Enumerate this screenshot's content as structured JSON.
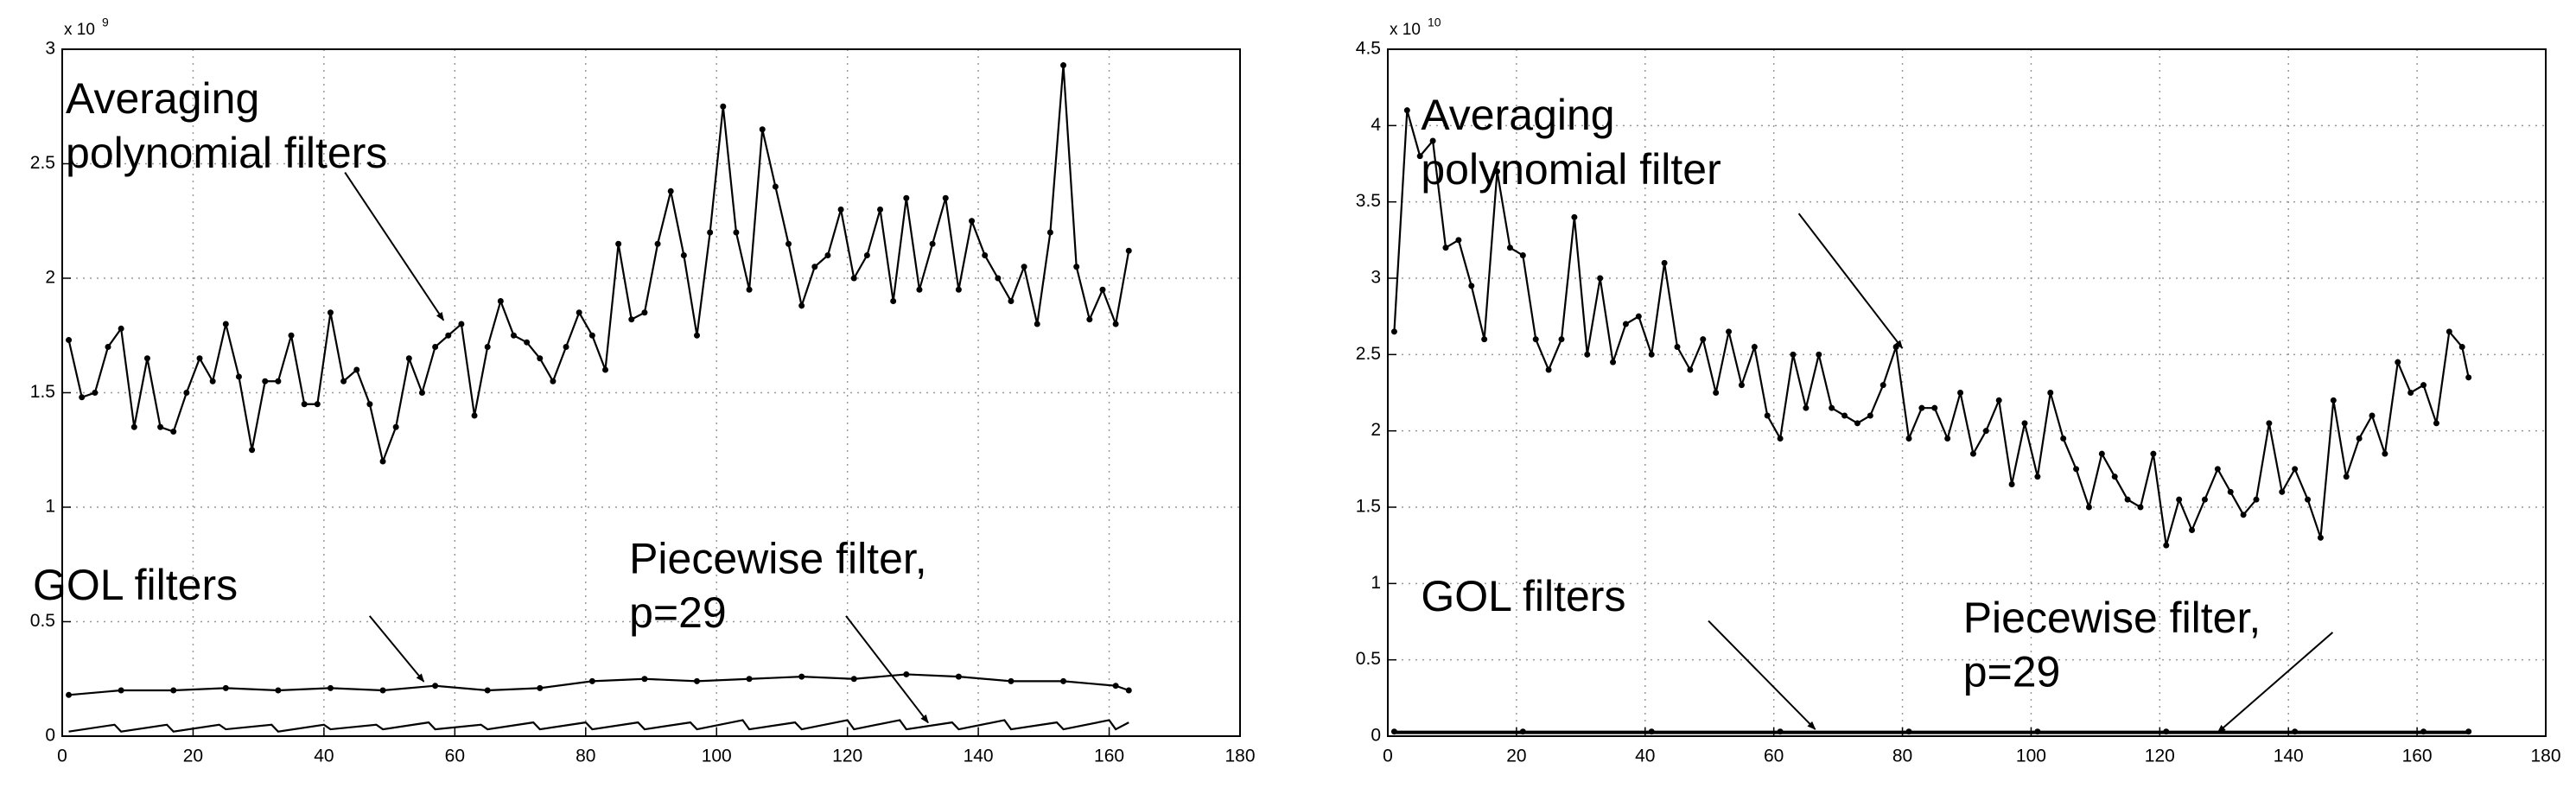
{
  "chart_data": [
    {
      "type": "line",
      "y_scale_label": {
        "base": "x 10",
        "exponent": "9"
      },
      "xlim": [
        0,
        180
      ],
      "xticks": [
        0,
        20,
        40,
        60,
        80,
        100,
        120,
        140,
        160,
        180
      ],
      "ylim": [
        0,
        3
      ],
      "yticks": [
        0,
        0.5,
        1,
        1.5,
        2,
        2.5,
        3
      ],
      "grid": true,
      "series": [
        {
          "color": "#000000",
          "markers": true,
          "x": [
            1,
            3,
            5,
            7,
            9,
            11,
            13,
            15,
            17,
            19,
            21,
            23,
            25,
            27,
            29,
            31,
            33,
            35,
            37,
            39,
            41,
            43,
            45,
            47,
            49,
            51,
            53,
            55,
            57,
            59,
            61,
            63,
            65,
            67,
            69,
            71,
            73,
            75,
            77,
            79,
            81,
            83,
            85,
            87,
            89,
            91,
            93,
            95,
            97,
            99,
            101,
            103,
            105,
            107,
            109,
            111,
            113,
            115,
            117,
            119,
            121,
            123,
            125,
            127,
            129,
            131,
            133,
            135,
            137,
            139,
            141,
            143,
            145,
            147,
            149,
            151,
            153,
            155,
            157,
            159,
            161,
            163
          ],
          "values": [
            1.73,
            1.48,
            1.5,
            1.7,
            1.78,
            1.35,
            1.65,
            1.35,
            1.33,
            1.5,
            1.65,
            1.55,
            1.8,
            1.57,
            1.25,
            1.55,
            1.55,
            1.75,
            1.45,
            1.45,
            1.85,
            1.55,
            1.6,
            1.45,
            1.2,
            1.35,
            1.65,
            1.5,
            1.7,
            1.75,
            1.8,
            1.4,
            1.7,
            1.9,
            1.75,
            1.72,
            1.65,
            1.55,
            1.7,
            1.85,
            1.75,
            1.6,
            2.15,
            1.82,
            1.85,
            2.15,
            2.38,
            2.1,
            1.75,
            2.2,
            2.75,
            2.2,
            1.95,
            2.65,
            2.4,
            2.15,
            1.88,
            2.05,
            2.1,
            2.3,
            2.0,
            2.1,
            2.3,
            1.9,
            2.35,
            1.95,
            2.15,
            2.35,
            1.95,
            2.25,
            2.1,
            2.0,
            1.9,
            2.05,
            1.8,
            2.2,
            2.93,
            2.05,
            1.82,
            1.95,
            1.8,
            2.12
          ]
        },
        {
          "color": "#000000",
          "markers": true,
          "x": [
            1,
            9,
            17,
            25,
            33,
            41,
            49,
            57,
            65,
            73,
            81,
            89,
            97,
            105,
            113,
            121,
            129,
            137,
            145,
            153,
            161,
            163
          ],
          "values": [
            0.18,
            0.2,
            0.2,
            0.21,
            0.2,
            0.21,
            0.2,
            0.22,
            0.2,
            0.21,
            0.24,
            0.25,
            0.24,
            0.25,
            0.26,
            0.25,
            0.27,
            0.26,
            0.24,
            0.24,
            0.22,
            0.2
          ]
        },
        {
          "color": "#000000",
          "markers": false,
          "x": [
            1,
            8,
            9,
            16,
            17,
            24,
            25,
            32,
            33,
            40,
            41,
            48,
            49,
            56,
            57,
            64,
            65,
            72,
            73,
            80,
            81,
            88,
            89,
            96,
            97,
            104,
            105,
            112,
            113,
            120,
            121,
            128,
            129,
            136,
            137,
            144,
            145,
            152,
            153,
            160,
            161,
            163
          ],
          "values": [
            0.02,
            0.05,
            0.02,
            0.05,
            0.02,
            0.05,
            0.03,
            0.05,
            0.02,
            0.05,
            0.03,
            0.05,
            0.03,
            0.06,
            0.03,
            0.05,
            0.03,
            0.06,
            0.03,
            0.06,
            0.03,
            0.06,
            0.03,
            0.06,
            0.03,
            0.07,
            0.03,
            0.06,
            0.03,
            0.07,
            0.03,
            0.07,
            0.03,
            0.06,
            0.03,
            0.07,
            0.03,
            0.06,
            0.03,
            0.07,
            0.03,
            0.06
          ]
        }
      ],
      "annotations": [
        {
          "lines": [
            "Averaging",
            "polynomial filters"
          ]
        },
        {
          "lines": [
            "GOL filters"
          ]
        },
        {
          "lines": [
            "Piecewise filter,",
            "p=29"
          ]
        }
      ]
    },
    {
      "type": "line",
      "y_scale_label": {
        "base": "x 10",
        "exponent": "10"
      },
      "xlim": [
        0,
        180
      ],
      "xticks": [
        0,
        20,
        40,
        60,
        80,
        100,
        120,
        140,
        160,
        180
      ],
      "ylim": [
        0,
        4.5
      ],
      "yticks": [
        0,
        0.5,
        1,
        1.5,
        2,
        2.5,
        3,
        3.5,
        4,
        4.5
      ],
      "grid": true,
      "series": [
        {
          "color": "#000000",
          "markers": true,
          "x": [
            1,
            3,
            5,
            7,
            9,
            11,
            13,
            15,
            17,
            19,
            21,
            23,
            25,
            27,
            29,
            31,
            33,
            35,
            37,
            39,
            41,
            43,
            45,
            47,
            49,
            51,
            53,
            55,
            57,
            59,
            61,
            63,
            65,
            67,
            69,
            71,
            73,
            75,
            77,
            79,
            81,
            83,
            85,
            87,
            89,
            91,
            93,
            95,
            97,
            99,
            101,
            103,
            105,
            107,
            109,
            111,
            113,
            115,
            117,
            119,
            121,
            123,
            125,
            127,
            129,
            131,
            133,
            135,
            137,
            139,
            141,
            143,
            145,
            147,
            149,
            151,
            153,
            155,
            157,
            159,
            161,
            163,
            165,
            167,
            168
          ],
          "values": [
            2.65,
            4.1,
            3.8,
            3.9,
            3.2,
            3.25,
            2.95,
            2.6,
            3.7,
            3.2,
            3.15,
            2.6,
            2.4,
            2.6,
            3.4,
            2.5,
            3.0,
            2.45,
            2.7,
            2.75,
            2.5,
            3.1,
            2.55,
            2.4,
            2.6,
            2.25,
            2.65,
            2.3,
            2.55,
            2.1,
            1.95,
            2.5,
            2.15,
            2.5,
            2.15,
            2.1,
            2.05,
            2.1,
            2.3,
            2.55,
            1.95,
            2.15,
            2.15,
            1.95,
            2.25,
            1.85,
            2.0,
            2.2,
            1.65,
            2.05,
            1.7,
            2.25,
            1.95,
            1.75,
            1.5,
            1.85,
            1.7,
            1.55,
            1.5,
            1.85,
            1.25,
            1.55,
            1.35,
            1.55,
            1.75,
            1.6,
            1.45,
            1.55,
            2.05,
            1.6,
            1.75,
            1.55,
            1.3,
            2.2,
            1.7,
            1.95,
            2.1,
            1.85,
            2.45,
            2.25,
            2.3,
            2.05,
            2.65,
            2.55,
            2.35
          ]
        },
        {
          "color": "#000000",
          "markers": true,
          "x": [
            1,
            21,
            41,
            61,
            81,
            101,
            121,
            141,
            161,
            168
          ],
          "values": [
            0.03,
            0.03,
            0.03,
            0.03,
            0.03,
            0.03,
            0.03,
            0.03,
            0.03,
            0.03
          ]
        },
        {
          "color": "#000000",
          "markers": false,
          "x": [
            1,
            40,
            80,
            120,
            168
          ],
          "values": [
            0.02,
            0.02,
            0.02,
            0.02,
            0.02
          ]
        }
      ],
      "annotations": [
        {
          "lines": [
            "Averaging",
            "polynomial filter"
          ]
        },
        {
          "lines": [
            "GOL filters"
          ]
        },
        {
          "lines": [
            "Piecewise filter,",
            "p=29"
          ]
        }
      ]
    }
  ]
}
